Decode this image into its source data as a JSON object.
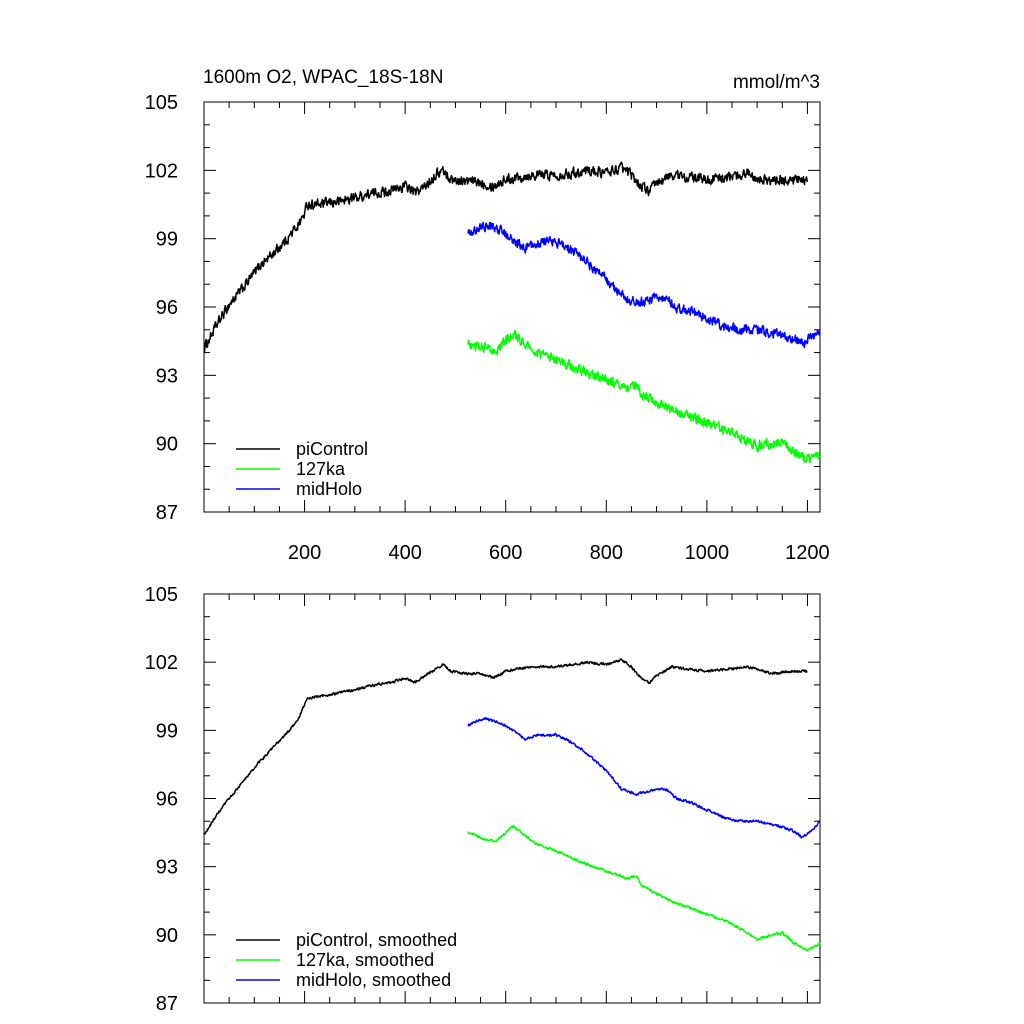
{
  "chart_data": [
    {
      "type": "line",
      "title": "1600m O2, WPAC_18S-18N",
      "units": "mmol/m^3",
      "xlim": [
        0,
        1225
      ],
      "ylim": [
        87,
        105
      ],
      "yticks": [
        87,
        90,
        93,
        96,
        99,
        102,
        105
      ],
      "xticks": [
        200,
        400,
        600,
        800,
        1000,
        1200
      ],
      "grid": false,
      "legend_position": "bottom-left",
      "series": [
        {
          "name": "piControl",
          "color": "#000000",
          "noise": 0.4,
          "points": [
            [
              1,
              94.2
            ],
            [
              20,
              95.0
            ],
            [
              50,
              96.1
            ],
            [
              80,
              96.9
            ],
            [
              110,
              97.8
            ],
            [
              140,
              98.4
            ],
            [
              170,
              99.1
            ],
            [
              190,
              99.7
            ],
            [
              200,
              100.1
            ],
            [
              205,
              100.5
            ],
            [
              230,
              100.5
            ],
            [
              260,
              100.6
            ],
            [
              300,
              100.8
            ],
            [
              340,
              101.0
            ],
            [
              370,
              101.1
            ],
            [
              400,
              101.3
            ],
            [
              410,
              101.2
            ],
            [
              420,
              101.0
            ],
            [
              440,
              101.3
            ],
            [
              460,
              101.8
            ],
            [
              475,
              102.0
            ],
            [
              490,
              101.6
            ],
            [
              520,
              101.5
            ],
            [
              550,
              101.5
            ],
            [
              575,
              101.3
            ],
            [
              600,
              101.6
            ],
            [
              650,
              101.8
            ],
            [
              700,
              101.8
            ],
            [
              740,
              101.9
            ],
            [
              760,
              102.0
            ],
            [
              800,
              101.9
            ],
            [
              830,
              102.1
            ],
            [
              850,
              101.8
            ],
            [
              870,
              101.3
            ],
            [
              885,
              101.1
            ],
            [
              900,
              101.4
            ],
            [
              930,
              101.8
            ],
            [
              960,
              101.7
            ],
            [
              1000,
              101.6
            ],
            [
              1050,
              101.7
            ],
            [
              1080,
              101.9
            ],
            [
              1100,
              101.7
            ],
            [
              1130,
              101.5
            ],
            [
              1170,
              101.6
            ],
            [
              1200,
              101.5
            ]
          ]
        },
        {
          "name": "127ka",
          "color": "#00ff00",
          "noise": 0.4,
          "points": [
            [
              525,
              94.4
            ],
            [
              560,
              94.2
            ],
            [
              580,
              94.1
            ],
            [
              600,
              94.5
            ],
            [
              615,
              94.8
            ],
            [
              630,
              94.5
            ],
            [
              660,
              94.0
            ],
            [
              700,
              93.7
            ],
            [
              750,
              93.2
            ],
            [
              800,
              92.8
            ],
            [
              840,
              92.4
            ],
            [
              860,
              92.5
            ],
            [
              870,
              92.2
            ],
            [
              900,
              91.8
            ],
            [
              940,
              91.4
            ],
            [
              1000,
              90.9
            ],
            [
              1050,
              90.5
            ],
            [
              1080,
              90.1
            ],
            [
              1100,
              89.9
            ],
            [
              1130,
              90.0
            ],
            [
              1150,
              90.1
            ],
            [
              1170,
              89.7
            ],
            [
              1200,
              89.3
            ],
            [
              1225,
              89.5
            ]
          ]
        },
        {
          "name": "midHolo",
          "color": "#0000ff",
          "noise": 0.4,
          "points": [
            [
              525,
              99.2
            ],
            [
              540,
              99.4
            ],
            [
              560,
              99.6
            ],
            [
              580,
              99.5
            ],
            [
              600,
              99.2
            ],
            [
              620,
              98.9
            ],
            [
              640,
              98.6
            ],
            [
              660,
              98.8
            ],
            [
              700,
              98.9
            ],
            [
              720,
              98.6
            ],
            [
              750,
              98.2
            ],
            [
              780,
              97.6
            ],
            [
              810,
              97.0
            ],
            [
              830,
              96.5
            ],
            [
              860,
              96.2
            ],
            [
              900,
              96.4
            ],
            [
              920,
              96.4
            ],
            [
              940,
              96.0
            ],
            [
              970,
              95.8
            ],
            [
              1000,
              95.5
            ],
            [
              1030,
              95.2
            ],
            [
              1060,
              95.0
            ],
            [
              1100,
              95.0
            ],
            [
              1140,
              94.8
            ],
            [
              1170,
              94.6
            ],
            [
              1190,
              94.4
            ],
            [
              1210,
              94.7
            ],
            [
              1225,
              95.0
            ]
          ]
        }
      ]
    },
    {
      "type": "line",
      "title": "",
      "ylim": [
        87,
        105
      ],
      "yticks": [
        87,
        90,
        93,
        96,
        99,
        102,
        105
      ],
      "grid": false,
      "legend_position": "bottom-left",
      "series": [
        {
          "name": "piControl, smoothed",
          "color": "#000000",
          "noise": 0.1,
          "points": [
            [
              1,
              94.4
            ],
            [
              20,
              95.1
            ],
            [
              50,
              96.0
            ],
            [
              80,
              96.8
            ],
            [
              110,
              97.6
            ],
            [
              140,
              98.3
            ],
            [
              170,
              99.0
            ],
            [
              190,
              99.6
            ],
            [
              205,
              100.4
            ],
            [
              230,
              100.5
            ],
            [
              260,
              100.6
            ],
            [
              300,
              100.8
            ],
            [
              340,
              101.0
            ],
            [
              370,
              101.1
            ],
            [
              400,
              101.3
            ],
            [
              410,
              101.2
            ],
            [
              420,
              101.1
            ],
            [
              440,
              101.4
            ],
            [
              460,
              101.7
            ],
            [
              475,
              101.9
            ],
            [
              490,
              101.6
            ],
            [
              520,
              101.5
            ],
            [
              550,
              101.5
            ],
            [
              575,
              101.3
            ],
            [
              600,
              101.6
            ],
            [
              650,
              101.8
            ],
            [
              700,
              101.8
            ],
            [
              740,
              101.9
            ],
            [
              760,
              102.0
            ],
            [
              800,
              101.9
            ],
            [
              830,
              102.1
            ],
            [
              850,
              101.8
            ],
            [
              870,
              101.3
            ],
            [
              885,
              101.1
            ],
            [
              900,
              101.4
            ],
            [
              930,
              101.8
            ],
            [
              960,
              101.7
            ],
            [
              1000,
              101.6
            ],
            [
              1050,
              101.7
            ],
            [
              1080,
              101.8
            ],
            [
              1100,
              101.7
            ],
            [
              1130,
              101.5
            ],
            [
              1170,
              101.6
            ],
            [
              1200,
              101.6
            ]
          ]
        },
        {
          "name": "127ka, smoothed",
          "color": "#00ff00",
          "noise": 0.1,
          "points": [
            [
              525,
              94.5
            ],
            [
              560,
              94.2
            ],
            [
              580,
              94.1
            ],
            [
              600,
              94.5
            ],
            [
              615,
              94.8
            ],
            [
              630,
              94.5
            ],
            [
              660,
              94.0
            ],
            [
              700,
              93.7
            ],
            [
              750,
              93.2
            ],
            [
              800,
              92.8
            ],
            [
              840,
              92.5
            ],
            [
              860,
              92.6
            ],
            [
              870,
              92.2
            ],
            [
              900,
              91.8
            ],
            [
              940,
              91.4
            ],
            [
              1000,
              90.9
            ],
            [
              1050,
              90.5
            ],
            [
              1080,
              90.1
            ],
            [
              1100,
              89.8
            ],
            [
              1130,
              90.0
            ],
            [
              1150,
              90.1
            ],
            [
              1170,
              89.7
            ],
            [
              1200,
              89.3
            ],
            [
              1225,
              89.6
            ]
          ]
        },
        {
          "name": "midHolo, smoothed",
          "color": "#0000ff",
          "noise": 0.1,
          "points": [
            [
              525,
              99.2
            ],
            [
              540,
              99.4
            ],
            [
              560,
              99.5
            ],
            [
              580,
              99.4
            ],
            [
              600,
              99.2
            ],
            [
              620,
              98.9
            ],
            [
              640,
              98.6
            ],
            [
              660,
              98.8
            ],
            [
              700,
              98.8
            ],
            [
              720,
              98.6
            ],
            [
              750,
              98.2
            ],
            [
              780,
              97.6
            ],
            [
              810,
              97.0
            ],
            [
              830,
              96.4
            ],
            [
              860,
              96.2
            ],
            [
              900,
              96.4
            ],
            [
              920,
              96.4
            ],
            [
              940,
              96.0
            ],
            [
              970,
              95.8
            ],
            [
              1000,
              95.5
            ],
            [
              1030,
              95.2
            ],
            [
              1060,
              95.0
            ],
            [
              1100,
              95.0
            ],
            [
              1140,
              94.8
            ],
            [
              1170,
              94.6
            ],
            [
              1190,
              94.3
            ],
            [
              1210,
              94.6
            ],
            [
              1225,
              95.0
            ]
          ]
        }
      ]
    }
  ]
}
